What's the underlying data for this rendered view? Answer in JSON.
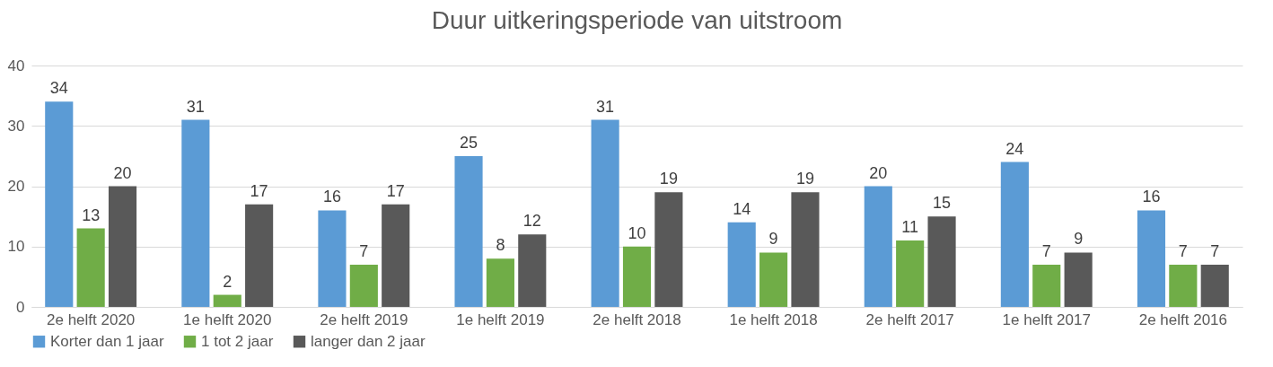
{
  "chart_data": {
    "type": "bar",
    "title": "Duur uitkeringsperiode van uitstroom",
    "categories": [
      "2e helft 2020",
      "1e helft 2020",
      "2e helft 2019",
      "1e helft 2019",
      "2e helft 2018",
      "1e helft 2018",
      "2e helft 2017",
      "1e helft 2017",
      "2e helft 2016"
    ],
    "series": [
      {
        "name": "Korter dan 1 jaar",
        "color": "#5b9bd5",
        "values": [
          34,
          31,
          16,
          25,
          31,
          14,
          20,
          24,
          16
        ]
      },
      {
        "name": "1 tot 2 jaar",
        "color": "#70ad47",
        "values": [
          13,
          2,
          7,
          8,
          10,
          9,
          11,
          7,
          7
        ]
      },
      {
        "name": "langer dan 2 jaar",
        "color": "#595959",
        "values": [
          20,
          17,
          17,
          12,
          19,
          19,
          15,
          9,
          7
        ]
      }
    ],
    "ylim": [
      0,
      40
    ],
    "yticks": [
      0,
      10,
      20,
      30,
      40
    ],
    "grid": "y",
    "legend": "bottom",
    "data_labels": true
  }
}
